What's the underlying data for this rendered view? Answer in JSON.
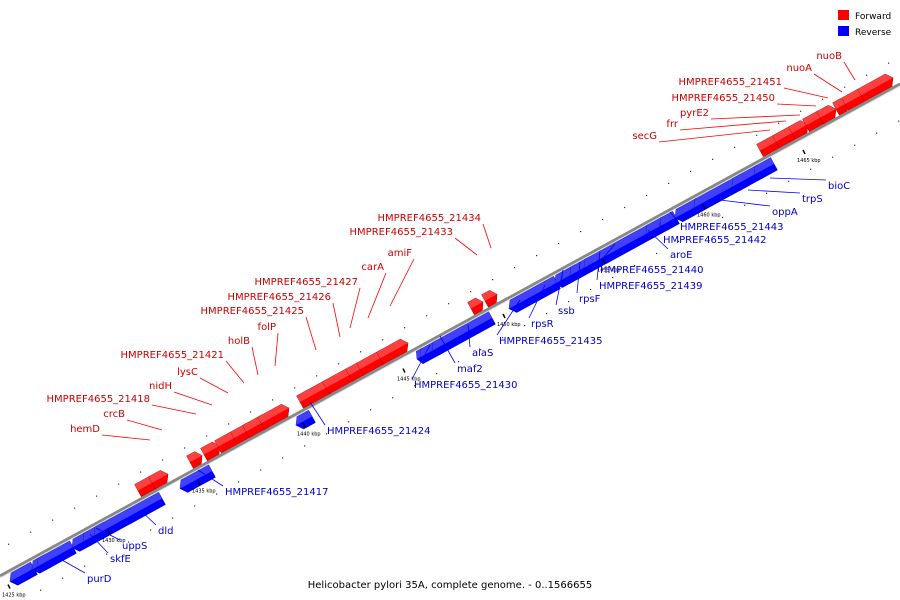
{
  "caption": "Helicobacter pylori 35A, complete genome. - 0..1566655",
  "legend": [
    {
      "label": "Forward",
      "color": "#ff0000"
    },
    {
      "label": "Reverse",
      "color": "#0000ff"
    }
  ],
  "colors": {
    "forward": "#ff0000",
    "forward_text": "#cc0000",
    "reverse": "#0000ff",
    "reverse_text": "#0000cc",
    "backbone": "#999999"
  },
  "ticks": [
    {
      "kbp": 1425,
      "label": "1425 kbp"
    },
    {
      "kbp": 1430,
      "label": "1430 kbp"
    },
    {
      "kbp": 1435,
      "label": "1435 kbp"
    },
    {
      "kbp": 1440,
      "label": "1440 kbp"
    },
    {
      "kbp": 1445,
      "label": "1445 kbp"
    },
    {
      "kbp": 1450,
      "label": "1450 kbp"
    },
    {
      "kbp": 1455,
      "label": "1455 kbp"
    },
    {
      "kbp": 1460,
      "label": "1460 kbp"
    },
    {
      "kbp": 1465,
      "label": "1465 kbp"
    }
  ],
  "forward_genes": [
    "hemD",
    "crcB",
    "HMPREF4655_21418",
    "nidH",
    "lysC",
    "HMPREF4655_21421",
    "holB",
    "folP",
    "HMPREF4655_21425",
    "HMPREF4655_21426",
    "HMPREF4655_21427",
    "carA",
    "amiF",
    "HMPREF4655_21433",
    "HMPREF4655_21434",
    "secG",
    "frr",
    "pyrE2",
    "HMPREF4655_21450",
    "HMPREF4655_21451",
    "nuoA",
    "nuoB"
  ],
  "reverse_genes": [
    "purD",
    "skfE",
    "uppS",
    "dld",
    "HMPREF4655_21417",
    "HMPREF4655_21424",
    "HMPREF4655_21430",
    "maf2",
    "alaS",
    "HMPREF4655_21435",
    "rpsR",
    "ssb",
    "rpsF",
    "HMPREF4655_21439",
    "HMPREF4655_21440",
    "aroE",
    "HMPREF4655_21442",
    "HMPREF4655_21443",
    "oppA",
    "trpS",
    "bioC"
  ]
}
